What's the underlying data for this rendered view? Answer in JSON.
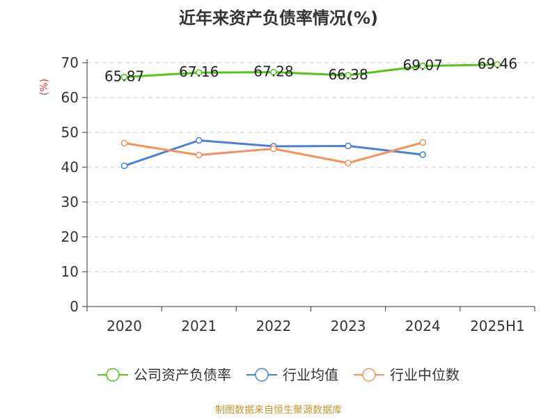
{
  "chart_data": {
    "type": "line",
    "title": "近年来资产负债率情况(%)",
    "ylabel": "(%)",
    "xlabel": "",
    "categories": [
      "2020",
      "2021",
      "2022",
      "2023",
      "2024",
      "2025H1"
    ],
    "ylim": [
      0,
      70
    ],
    "yticks": [
      0,
      10,
      20,
      30,
      40,
      50,
      60,
      70
    ],
    "grid": true,
    "legend_position": "bottom",
    "series": [
      {
        "name": "公司资产负债率",
        "color": "#52c41a",
        "values": [
          65.87,
          67.16,
          67.28,
          66.38,
          69.07,
          69.46
        ],
        "labels": [
          "65.87",
          "67.16",
          "67.28",
          "66.38",
          "69.07",
          "69.46"
        ],
        "show_labels": true
      },
      {
        "name": "行业均值",
        "color": "#4a7fd9",
        "values": [
          40.4,
          47.7,
          46.0,
          46.1,
          43.6,
          null
        ],
        "show_labels": false
      },
      {
        "name": "行业中位数",
        "color": "#f4915c",
        "values": [
          46.9,
          43.5,
          45.3,
          41.2,
          47.1,
          null
        ],
        "show_labels": false
      }
    ]
  },
  "source_note": "制图数据来自恒生聚源数据库"
}
